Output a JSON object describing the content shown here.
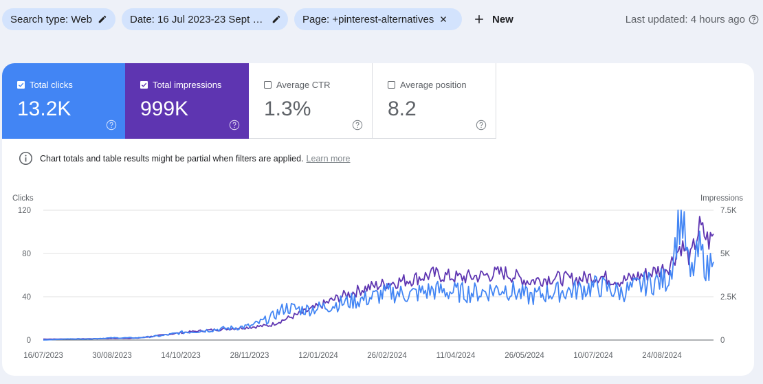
{
  "filters": {
    "search_type": "Search type: Web",
    "date": "Date: 16 Jul 2023-23 Sept 2024",
    "page": "Page: +pinterest-alternatives"
  },
  "new_label": "New",
  "last_updated": "Last updated: 4 hours ago",
  "metrics": [
    {
      "label": "Total clicks",
      "value": "13.2K",
      "checked": true,
      "color": "#4285f4"
    },
    {
      "label": "Total impressions",
      "value": "999K",
      "checked": true,
      "color": "#5e35b1"
    },
    {
      "label": "Average CTR",
      "value": "1.3%",
      "checked": false
    },
    {
      "label": "Average position",
      "value": "8.2",
      "checked": false
    }
  ],
  "notice": {
    "text": "Chart totals and table results might be partial when filters are applied.",
    "link": "Learn more"
  },
  "chart_data": {
    "type": "line",
    "ylabel_left": "Clicks",
    "ylabel_right": "Impressions",
    "y_left_ticks": [
      "120",
      "80",
      "40",
      "0"
    ],
    "y_left_range": [
      0,
      120
    ],
    "y_right_ticks": [
      "7.5K",
      "5K",
      "2.5K",
      "0"
    ],
    "y_right_range": [
      0,
      7500
    ],
    "x_tick_labels": [
      "16/07/2023",
      "30/08/2023",
      "14/10/2023",
      "28/11/2023",
      "12/01/2024",
      "26/02/2024",
      "11/04/2024",
      "26/05/2024",
      "10/07/2024",
      "24/08/2024"
    ],
    "x_range": [
      "2023-07-16",
      "2024-09-23"
    ],
    "grid": true,
    "series": [
      {
        "name": "Total clicks",
        "axis": "left",
        "color": "#4285f4",
        "x": [
          "2023-07-16",
          "2023-08-01",
          "2023-08-15",
          "2023-08-30",
          "2023-09-15",
          "2023-10-01",
          "2023-10-14",
          "2023-10-30",
          "2023-11-15",
          "2023-11-28",
          "2023-12-10",
          "2023-12-20",
          "2024-01-01",
          "2024-01-12",
          "2024-01-25",
          "2024-02-10",
          "2024-02-26",
          "2024-03-10",
          "2024-03-25",
          "2024-04-11",
          "2024-04-25",
          "2024-05-10",
          "2024-05-26",
          "2024-06-10",
          "2024-06-25",
          "2024-07-10",
          "2024-07-25",
          "2024-08-10",
          "2024-08-24",
          "2024-08-26",
          "2024-09-02",
          "2024-09-08",
          "2024-09-14",
          "2024-09-20",
          "2024-09-23"
        ],
        "values": [
          0,
          1,
          1,
          2,
          2,
          4,
          7,
          9,
          11,
          13,
          20,
          30,
          28,
          30,
          34,
          38,
          44,
          42,
          46,
          44,
          44,
          48,
          40,
          44,
          46,
          50,
          44,
          52,
          56,
          64,
          118,
          58,
          84,
          62,
          92
        ]
      },
      {
        "name": "Total impressions",
        "axis": "right",
        "color": "#5e35b1",
        "x": [
          "2023-07-16",
          "2023-08-01",
          "2023-08-15",
          "2023-08-30",
          "2023-09-15",
          "2023-10-01",
          "2023-10-14",
          "2023-10-30",
          "2023-11-15",
          "2023-11-28",
          "2023-12-10",
          "2023-12-20",
          "2024-01-01",
          "2024-01-12",
          "2024-01-25",
          "2024-02-10",
          "2024-02-26",
          "2024-03-10",
          "2024-03-25",
          "2024-04-11",
          "2024-04-25",
          "2024-05-10",
          "2024-05-26",
          "2024-06-10",
          "2024-06-25",
          "2024-07-10",
          "2024-07-25",
          "2024-08-10",
          "2024-08-24",
          "2024-08-26",
          "2024-09-02",
          "2024-09-08",
          "2024-09-14",
          "2024-09-20",
          "2024-09-23"
        ],
        "values": [
          50,
          60,
          70,
          90,
          110,
          280,
          430,
          560,
          660,
          750,
          850,
          1200,
          1600,
          2000,
          2500,
          3000,
          3300,
          3500,
          3800,
          3600,
          3700,
          3900,
          3400,
          3600,
          3500,
          3700,
          3400,
          3800,
          4200,
          4400,
          5500,
          4700,
          6500,
          5700,
          6000
        ]
      }
    ]
  }
}
